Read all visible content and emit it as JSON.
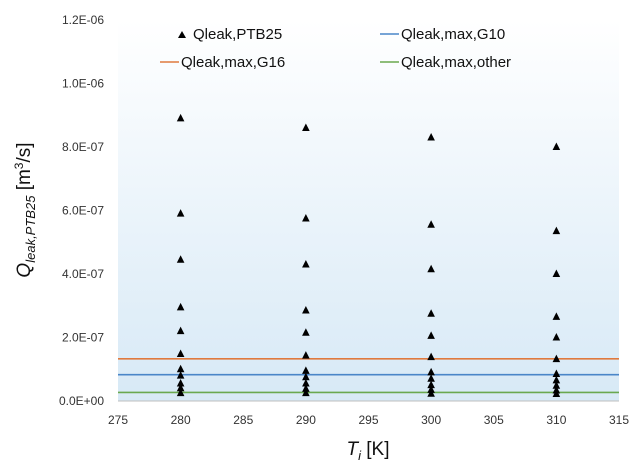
{
  "chart_data": {
    "type": "scatter",
    "xlim": [
      275,
      315
    ],
    "ylim": [
      0,
      1.2e-06
    ],
    "x_ticks": [
      275,
      280,
      285,
      290,
      295,
      300,
      305,
      310,
      315
    ],
    "x_tick_labels": [
      "275",
      "280",
      "285",
      "290",
      "295",
      "300",
      "305",
      "310",
      "315"
    ],
    "y_ticks": [
      0,
      2e-07,
      4e-07,
      6e-07,
      8e-07,
      1e-06,
      1.2e-06
    ],
    "y_tick_labels": [
      "0.0E+00",
      "2.0E-07",
      "4.0E-07",
      "6.0E-07",
      "8.0E-07",
      "1.0E-06",
      "1.2E-06"
    ],
    "xlabel": {
      "main": "T",
      "sub": "i",
      "unit": " [K]"
    },
    "ylabel": {
      "main": "Q",
      "sub": "leak,PTB25",
      "unit_pre": " [m",
      "sup": "3",
      "unit_post": "/s]"
    },
    "grid": false,
    "legend_position": "top",
    "scatter_series": [
      {
        "name": "Qleak,PTB25",
        "marker": "triangle",
        "color": "#000000",
        "points": [
          {
            "x": 280,
            "y": 8.9e-07
          },
          {
            "x": 280,
            "y": 5.9e-07
          },
          {
            "x": 280,
            "y": 4.45e-07
          },
          {
            "x": 280,
            "y": 2.95e-07
          },
          {
            "x": 280,
            "y": 2.2e-07
          },
          {
            "x": 280,
            "y": 1.48e-07
          },
          {
            "x": 280,
            "y": 1e-07
          },
          {
            "x": 280,
            "y": 8e-08
          },
          {
            "x": 280,
            "y": 5.5e-08
          },
          {
            "x": 280,
            "y": 4e-08
          },
          {
            "x": 280,
            "y": 2.5e-08
          },
          {
            "x": 290,
            "y": 8.6e-07
          },
          {
            "x": 290,
            "y": 5.75e-07
          },
          {
            "x": 290,
            "y": 4.3e-07
          },
          {
            "x": 290,
            "y": 2.85e-07
          },
          {
            "x": 290,
            "y": 2.15e-07
          },
          {
            "x": 290,
            "y": 1.43e-07
          },
          {
            "x": 290,
            "y": 9.5e-08
          },
          {
            "x": 290,
            "y": 7.5e-08
          },
          {
            "x": 290,
            "y": 5.5e-08
          },
          {
            "x": 290,
            "y": 3.8e-08
          },
          {
            "x": 290,
            "y": 2.5e-08
          },
          {
            "x": 300,
            "y": 8.3e-07
          },
          {
            "x": 300,
            "y": 5.55e-07
          },
          {
            "x": 300,
            "y": 4.15e-07
          },
          {
            "x": 300,
            "y": 2.75e-07
          },
          {
            "x": 300,
            "y": 2.05e-07
          },
          {
            "x": 300,
            "y": 1.38e-07
          },
          {
            "x": 300,
            "y": 9e-08
          },
          {
            "x": 300,
            "y": 7e-08
          },
          {
            "x": 300,
            "y": 5e-08
          },
          {
            "x": 300,
            "y": 3.5e-08
          },
          {
            "x": 300,
            "y": 2.3e-08
          },
          {
            "x": 310,
            "y": 8e-07
          },
          {
            "x": 310,
            "y": 5.35e-07
          },
          {
            "x": 310,
            "y": 4e-07
          },
          {
            "x": 310,
            "y": 2.65e-07
          },
          {
            "x": 310,
            "y": 2e-07
          },
          {
            "x": 310,
            "y": 1.32e-07
          },
          {
            "x": 310,
            "y": 8.5e-08
          },
          {
            "x": 310,
            "y": 6.5e-08
          },
          {
            "x": 310,
            "y": 4.8e-08
          },
          {
            "x": 310,
            "y": 3.3e-08
          },
          {
            "x": 310,
            "y": 2.2e-08
          }
        ]
      }
    ],
    "line_series": [
      {
        "name": "Qleak,max,G10",
        "color": "#4a86c8",
        "y": 8.3e-08
      },
      {
        "name": "Qleak,max,G16",
        "color": "#e07a3e",
        "y": 1.33e-07
      },
      {
        "name": "Qleak,max,other",
        "color": "#6aa84f",
        "y": 2.7e-08
      }
    ]
  }
}
